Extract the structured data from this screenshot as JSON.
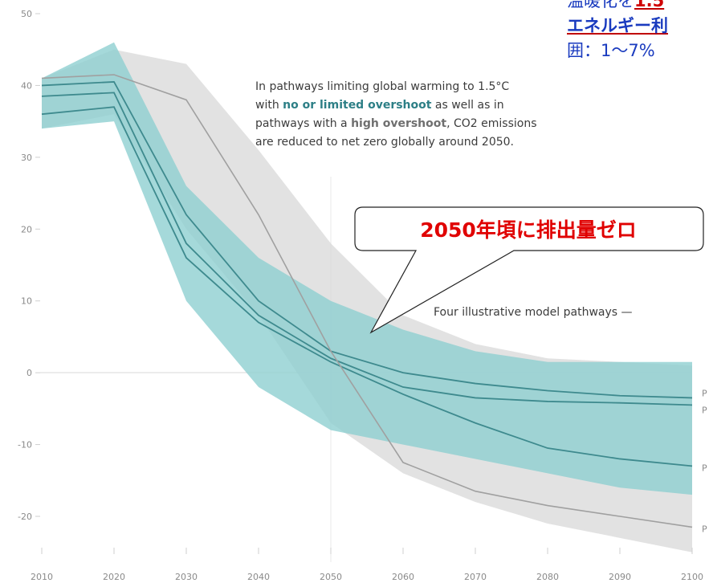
{
  "chart_data": {
    "type": "line",
    "x": [
      2010,
      2020,
      2030,
      2040,
      2050,
      2060,
      2070,
      2080,
      2090,
      2100
    ],
    "xlim": [
      2010,
      2100
    ],
    "ylim": [
      -25,
      50
    ],
    "yticks": [
      50,
      40,
      30,
      20,
      10,
      0,
      -10,
      -20
    ],
    "xtick_labels": [
      "2010",
      "2020",
      "2030",
      "2040",
      "2050",
      "2060",
      "2070",
      "2080",
      "2090",
      "2100"
    ],
    "ytick_labels": [
      "50",
      "40",
      "30",
      "20",
      "10",
      "0",
      "-10",
      "-20"
    ],
    "series": [
      {
        "name": "P",
        "values": [
          40,
          40.5,
          22,
          10,
          3,
          0,
          -1.5,
          -2.5,
          -3.2,
          -3.5
        ]
      },
      {
        "name": "P",
        "values": [
          38.5,
          39,
          18,
          8,
          2,
          -2,
          -3.5,
          -4,
          -4.2,
          -4.5
        ]
      },
      {
        "name": "P",
        "values": [
          36,
          37,
          16,
          7,
          1.5,
          -3,
          -7,
          -10.5,
          -12,
          -13
        ]
      },
      {
        "name": "P",
        "values": [
          41,
          41.5,
          38,
          22,
          3,
          -12.5,
          -16.5,
          -18.5,
          -20,
          -21.5
        ]
      }
    ],
    "bands": [
      {
        "color": "#d8d8d8",
        "upper": [
          41,
          45,
          43,
          31,
          18,
          8,
          4,
          2,
          1.5,
          1
        ],
        "lower": [
          34,
          36,
          20,
          8,
          -7,
          -14,
          -18,
          -21,
          -23,
          -25
        ]
      },
      {
        "color": "#8ed0d1",
        "upper": [
          41,
          46,
          26,
          16,
          10,
          6,
          3,
          1.5,
          1.5,
          1.5
        ],
        "lower": [
          34,
          35,
          10,
          -2,
          -8,
          -10,
          -12,
          -14,
          -16,
          -17
        ]
      }
    ],
    "annotations": [
      "In pathways limiting global warming to 1.5°C",
      "with no or limited overshoot as well as in",
      "pathways with a high overshoot, CO2 emissions",
      "are reduced to net zero globally around 2050.",
      "Four illustrative model pathways",
      "2050年頃に排出量ゼロ"
    ],
    "legend": "none",
    "grid": false
  },
  "annotation": {
    "line1": "In pathways limiting global warming to 1.5°C",
    "line2_pre": "with ",
    "line2_hl": "no or limited overshoot",
    "line2_post": " as well as in",
    "line3_pre": "pathways with a ",
    "line3_hl": "high overshoot",
    "line3_post": ", CO2 emissions",
    "line4": "are reduced to net zero globally around 2050."
  },
  "four_label": "Four illustrative model pathways —",
  "callout_text": "2050年頃に排出量ゼロ",
  "end_labels": [
    "P",
    "P",
    "P",
    "P"
  ],
  "ja_box": {
    "line1_pre": "温暖化を",
    "line1_tail": "1.5",
    "line2": "エネルギー利",
    "line3": "囲：1〜7%"
  },
  "colors": {
    "band_gray": "#d9d9d9",
    "band_teal": "#8fd0d1",
    "line_teal": "#3e8a8e",
    "line_gray": "#a0a0a0",
    "callout_text": "#e00000",
    "callout_border": "#222222"
  }
}
